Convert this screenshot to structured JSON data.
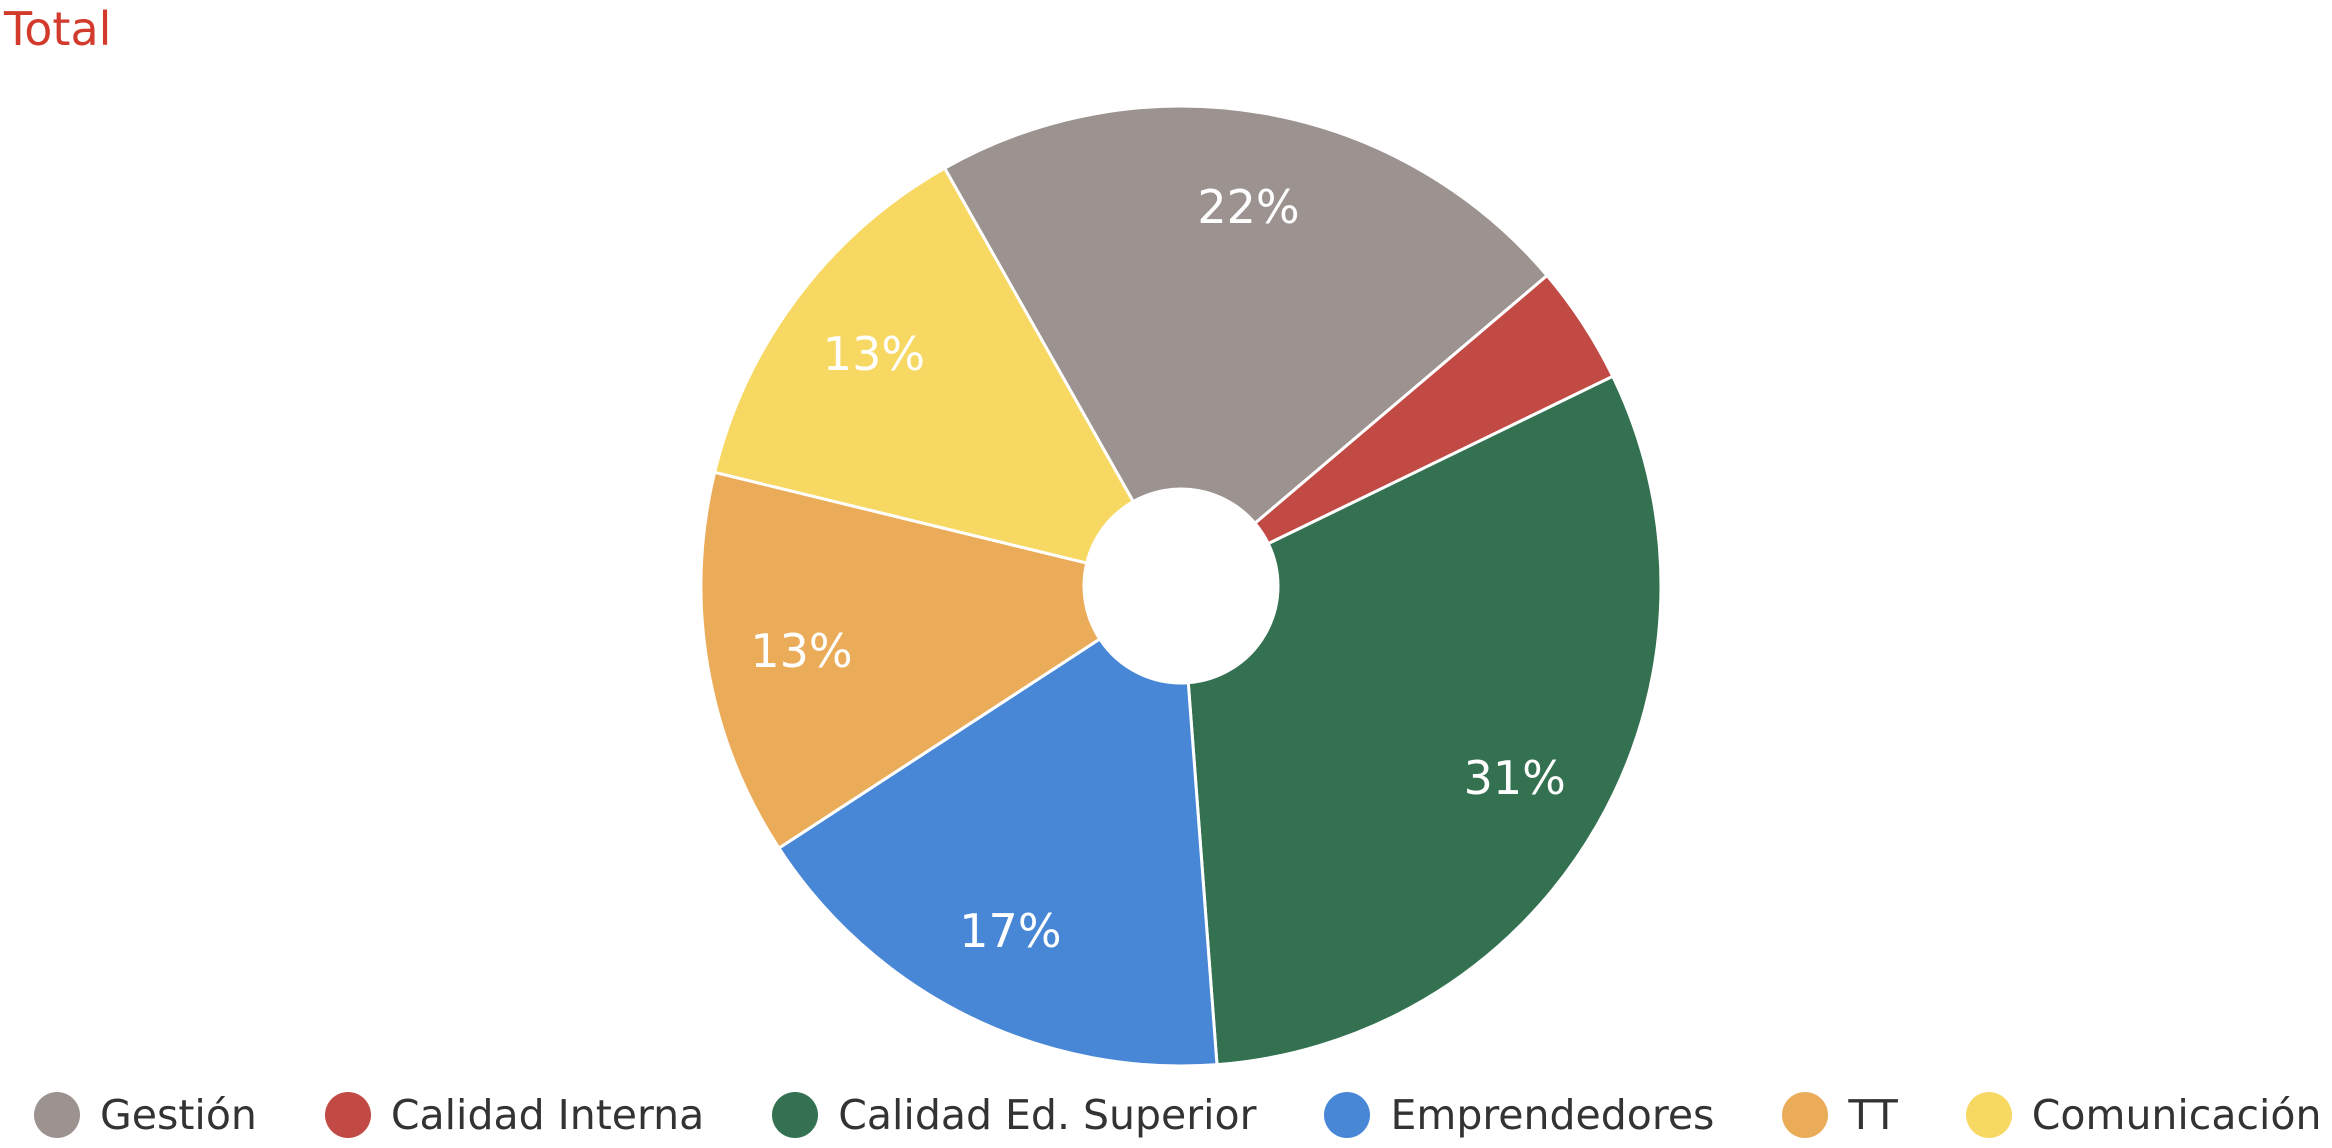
{
  "chart_data": {
    "type": "pie",
    "title": "Total",
    "donut": true,
    "legend_position": "bottom",
    "categories": [
      "Gestión",
      "Calidad Interna",
      "Calidad Ed. Superior",
      "Emprendedores",
      "TT",
      "Comunicación"
    ],
    "values": [
      22,
      4,
      31,
      17,
      13,
      13
    ],
    "labels": [
      "22%",
      "",
      "31%",
      "17%",
      "13%",
      "13%"
    ],
    "colors": [
      "#9c9290",
      "#c14a45",
      "#337150",
      "#4887d6",
      "#ebac5a",
      "#f7d862"
    ]
  }
}
